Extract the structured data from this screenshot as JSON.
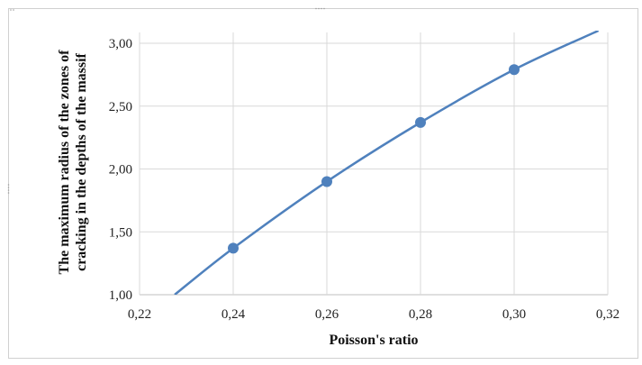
{
  "chart_data": {
    "type": "line",
    "title": "",
    "xlabel": "Poisson's ratio",
    "ylabel_lines": [
      "The maximum  radius of the zones of",
      "cracking in the depths of the massif"
    ],
    "xlim": [
      0.22,
      0.32
    ],
    "ylim": [
      1.0,
      3.0
    ],
    "x_ticks": [
      "0,22",
      "0,24",
      "0,26",
      "0,28",
      "0,30",
      "0,32"
    ],
    "x_tick_values": [
      0.22,
      0.24,
      0.26,
      0.28,
      0.3,
      0.32
    ],
    "y_ticks": [
      "1,00",
      "1,50",
      "2,00",
      "2,50",
      "3,00"
    ],
    "y_tick_values": [
      1.0,
      1.5,
      2.0,
      2.5,
      3.0
    ],
    "grid": true,
    "series": [
      {
        "color": "#4f81bd",
        "points": [
          {
            "x": 0.24,
            "y": 1.37
          },
          {
            "x": 0.26,
            "y": 1.9
          },
          {
            "x": 0.28,
            "y": 2.37
          },
          {
            "x": 0.3,
            "y": 2.79
          }
        ],
        "trend_line": [
          {
            "x": 0.2275,
            "y": 1.0
          },
          {
            "x": 0.24,
            "y": 1.37
          },
          {
            "x": 0.26,
            "y": 1.9
          },
          {
            "x": 0.28,
            "y": 2.37
          },
          {
            "x": 0.3,
            "y": 2.79
          },
          {
            "x": 0.318,
            "y": 3.1
          }
        ]
      }
    ]
  }
}
